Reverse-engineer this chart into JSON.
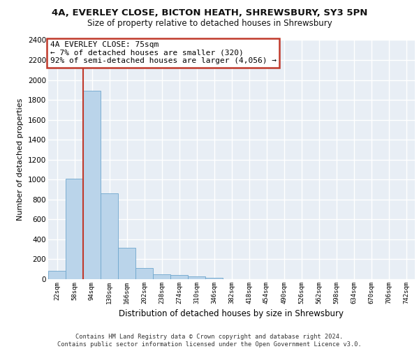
{
  "title_line1": "4A, EVERLEY CLOSE, BICTON HEATH, SHREWSBURY, SY3 5PN",
  "title_line2": "Size of property relative to detached houses in Shrewsbury",
  "xlabel": "Distribution of detached houses by size in Shrewsbury",
  "ylabel": "Number of detached properties",
  "bar_labels": [
    "22sqm",
    "58sqm",
    "94sqm",
    "130sqm",
    "166sqm",
    "202sqm",
    "238sqm",
    "274sqm",
    "310sqm",
    "346sqm",
    "382sqm",
    "418sqm",
    "454sqm",
    "490sqm",
    "526sqm",
    "562sqm",
    "598sqm",
    "634sqm",
    "670sqm",
    "706sqm",
    "742sqm"
  ],
  "bar_values": [
    85,
    1010,
    1890,
    860,
    315,
    115,
    50,
    40,
    30,
    15,
    0,
    0,
    0,
    0,
    0,
    0,
    0,
    0,
    0,
    0,
    0
  ],
  "bar_color": "#bad4ea",
  "bar_edge_color": "#6ea6cd",
  "vline_x": 1.5,
  "vline_color": "#c0392b",
  "ylim": [
    0,
    2400
  ],
  "yticks": [
    0,
    200,
    400,
    600,
    800,
    1000,
    1200,
    1400,
    1600,
    1800,
    2000,
    2200,
    2400
  ],
  "annotation_line1": "4A EVERLEY CLOSE: 75sqm",
  "annotation_line2": "← 7% of detached houses are smaller (320)",
  "annotation_line3": "92% of semi-detached houses are larger (4,056) →",
  "annotation_box_color": "#ffffff",
  "annotation_box_edge": "#c0392b",
  "footer_text": "Contains HM Land Registry data © Crown copyright and database right 2024.\nContains public sector information licensed under the Open Government Licence v3.0.",
  "bg_color": "#e8eef5",
  "grid_color": "#ffffff"
}
